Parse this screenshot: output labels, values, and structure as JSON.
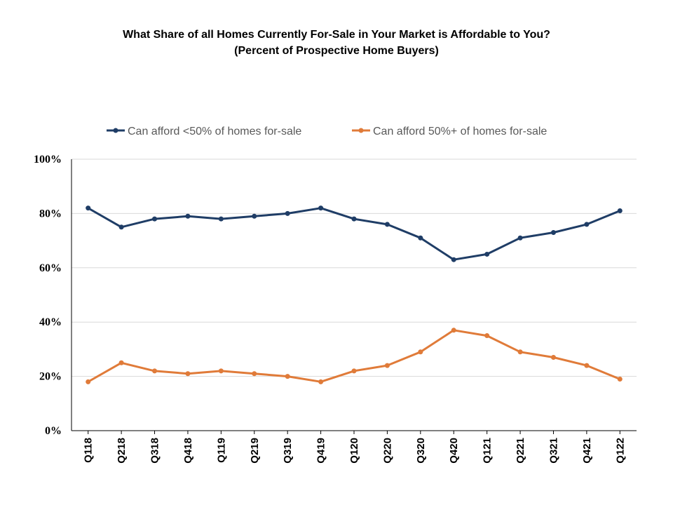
{
  "chart_data": {
    "type": "line",
    "title": "What Share of all Homes Currently For-Sale in Your Market is Affordable to You?",
    "subtitle": "(Percent of Prospective Home Buyers)",
    "categories": [
      "Q118",
      "Q218",
      "Q318",
      "Q418",
      "Q119",
      "Q219",
      "Q319",
      "Q419",
      "Q120",
      "Q220",
      "Q320",
      "Q420",
      "Q121",
      "Q221",
      "Q321",
      "Q421",
      "Q122"
    ],
    "series": [
      {
        "name": "Can afford <50% of homes for-sale",
        "color": "#1f3d66",
        "values": [
          82,
          75,
          78,
          79,
          78,
          79,
          80,
          82,
          78,
          76,
          71,
          63,
          65,
          71,
          73,
          76,
          81
        ]
      },
      {
        "name": "Can afford 50%+ of homes for-sale",
        "color": "#e07b39",
        "values": [
          18,
          25,
          22,
          21,
          22,
          21,
          20,
          18,
          22,
          24,
          29,
          37,
          35,
          29,
          27,
          24,
          19
        ]
      }
    ],
    "yticks": [
      "0%",
      "20%",
      "40%",
      "60%",
      "80%",
      "100%"
    ],
    "ylim": [
      0,
      100
    ],
    "grid": true,
    "legend_position": "top"
  }
}
